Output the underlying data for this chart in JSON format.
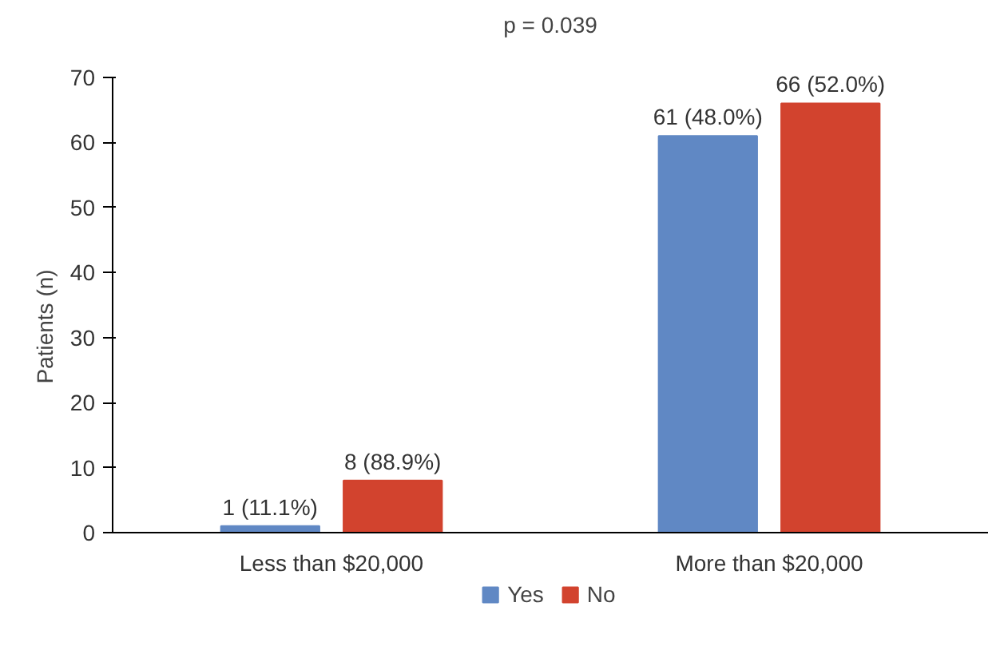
{
  "chart_data": {
    "type": "bar",
    "title": "p = 0.039",
    "ylabel": "Patients (n)",
    "categories": [
      "Less than $20,000",
      "More than $20,000"
    ],
    "series": [
      {
        "name": "Yes",
        "color": "#6088c4",
        "values": [
          1,
          61
        ],
        "value_labels": [
          "1 (11.1%)",
          "61 (48.0%)"
        ]
      },
      {
        "name": "No",
        "color": "#d2432e",
        "values": [
          8,
          66
        ],
        "value_labels": [
          "8 (88.9%)",
          "66 (52.0%)"
        ]
      }
    ],
    "ylim": [
      0,
      70
    ],
    "yticks": [
      0,
      10,
      20,
      30,
      40,
      50,
      60,
      70
    ],
    "grid": false,
    "legend": "bottom"
  }
}
